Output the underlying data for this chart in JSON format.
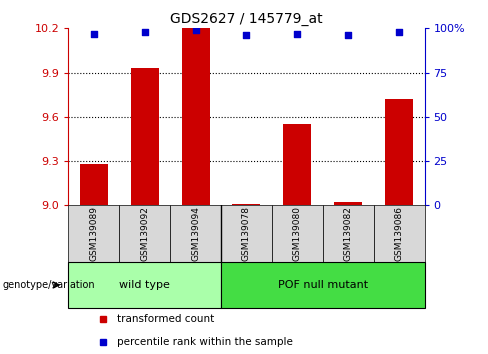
{
  "title": "GDS2627 / 145779_at",
  "samples": [
    "GSM139089",
    "GSM139092",
    "GSM139094",
    "GSM139078",
    "GSM139080",
    "GSM139082",
    "GSM139086"
  ],
  "transformed_counts": [
    9.28,
    9.93,
    10.2,
    9.01,
    9.55,
    9.02,
    9.72
  ],
  "percentile_ranks": [
    97,
    98,
    99,
    96,
    97,
    96,
    98
  ],
  "ylim_left": [
    9.0,
    10.2
  ],
  "yticks_left": [
    9.0,
    9.3,
    9.6,
    9.9,
    10.2
  ],
  "ylim_right": [
    0,
    100
  ],
  "yticks_right": [
    0,
    25,
    50,
    75,
    100
  ],
  "ytick_labels_right": [
    "0",
    "25",
    "50",
    "75",
    "100%"
  ],
  "bar_color": "#cc0000",
  "dot_color": "#0000cc",
  "wild_type_label": "wild type",
  "pof_null_label": "POF null mutant",
  "wild_type_bg": "#aaffaa",
  "pof_null_bg": "#44dd44",
  "label_area_bg": "#d8d8d8",
  "legend_bar_label": "transformed count",
  "legend_dot_label": "percentile rank within the sample",
  "genotype_label": "genotype/variation",
  "left_tick_color": "#cc0000",
  "right_tick_color": "#0000cc",
  "bar_width": 0.55,
  "n_wt": 3,
  "n_pof": 4
}
